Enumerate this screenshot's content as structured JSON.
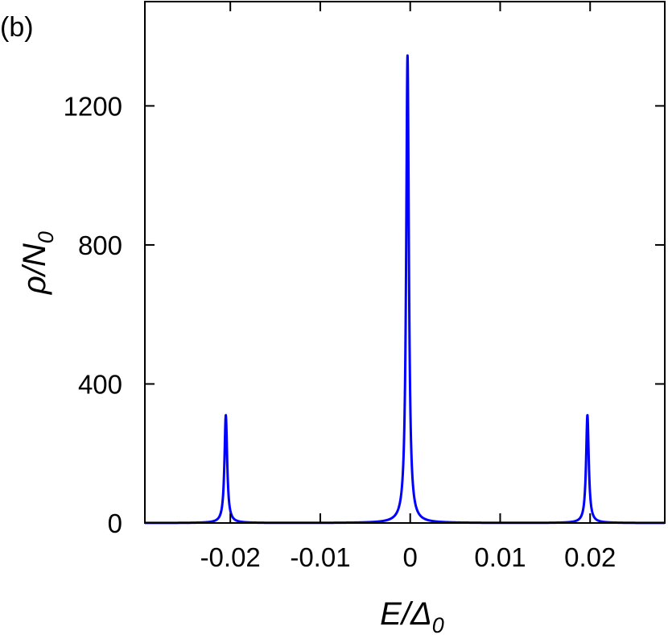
{
  "panel_label": "(b)",
  "chart_data": {
    "type": "line",
    "xlabel": {
      "main": "E/Δ",
      "sub": "0"
    },
    "ylabel": {
      "main": "ρ/N",
      "sub": "0"
    },
    "xlim": [
      -0.0295,
      0.0283
    ],
    "ylim": [
      0,
      1500
    ],
    "x_ticks": [
      {
        "value": -0.02,
        "label": "-0.02"
      },
      {
        "value": -0.01,
        "label": "-0.01"
      },
      {
        "value": 0,
        "label": "0"
      },
      {
        "value": 0.01,
        "label": "0.01"
      },
      {
        "value": 0.02,
        "label": "0.02"
      }
    ],
    "y_ticks": [
      {
        "value": 0,
        "label": "0"
      },
      {
        "value": 400,
        "label": "400"
      },
      {
        "value": 800,
        "label": "800"
      },
      {
        "value": 1200,
        "label": "1200"
      }
    ],
    "grid": false,
    "series": [
      {
        "color": "#0000ff",
        "peaks": [
          {
            "center": -0.0205,
            "height": 310
          },
          {
            "center": -0.0003,
            "height": 1345
          },
          {
            "center": 0.0197,
            "height": 310
          }
        ]
      }
    ]
  }
}
